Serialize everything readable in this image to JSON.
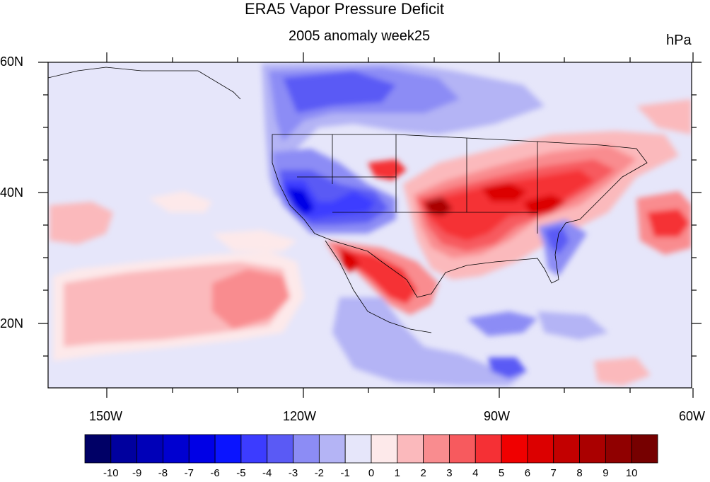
{
  "figure": {
    "title": "ERA5 Vapor Pressure Deficit",
    "subtitle": "2005 anomaly week25",
    "units": "hPa"
  },
  "axes": {
    "lat_labels": [
      "60N",
      "40N",
      "20N"
    ],
    "lon_labels": [
      "150W",
      "120W",
      "90W",
      "60W"
    ],
    "lat_range": [
      10,
      60
    ],
    "lon_range": [
      -159,
      -61
    ]
  },
  "colorbar": {
    "labels": [
      "-10",
      "-9",
      "-8",
      "-7",
      "-6",
      "-5",
      "-4",
      "-3",
      "-2",
      "-1",
      "0",
      "1",
      "2",
      "3",
      "4",
      "5",
      "6",
      "7",
      "8",
      "9",
      "10"
    ],
    "colors": [
      "#000066",
      "#00009e",
      "#0000b8",
      "#0000d0",
      "#0000e6",
      "#0a14ff",
      "#3c3cff",
      "#5a5af5",
      "#8c8cf5",
      "#b4b4f5",
      "#e6e6fa",
      "#fde9ea",
      "#fbb9bc",
      "#f98c8f",
      "#f75a5e",
      "#f53035",
      "#f00000",
      "#dc0000",
      "#c30000",
      "#aa0000",
      "#900000",
      "#760000"
    ]
  },
  "colors": {
    "background": "#e6e6fa",
    "positive": "#f53035",
    "negative": "#3c3cff"
  }
}
